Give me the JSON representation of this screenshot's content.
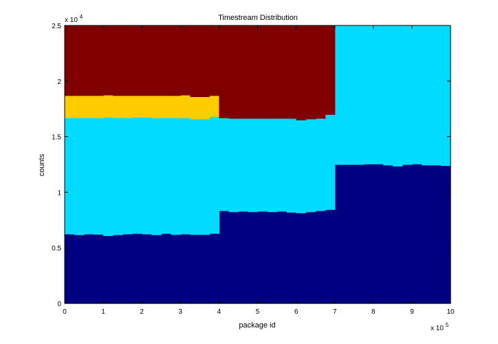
{
  "chart_data": {
    "type": "area",
    "title": "Timestream Distribution",
    "xlabel": "package id",
    "ylabel": "counts",
    "xlim": [
      0,
      1000000
    ],
    "ylim": [
      0,
      25000
    ],
    "x_multiplier": "x 10",
    "x_multiplier_exp": "5",
    "y_multiplier": "x 10",
    "y_multiplier_exp": "4",
    "x_ticks": [
      0,
      100000,
      200000,
      300000,
      400000,
      500000,
      600000,
      700000,
      800000,
      900000,
      1000000
    ],
    "x_tick_labels": [
      "0",
      "1",
      "2",
      "3",
      "4",
      "5",
      "6",
      "7",
      "8",
      "9",
      "10"
    ],
    "y_ticks": [
      0,
      5000,
      10000,
      15000,
      20000,
      25000
    ],
    "y_tick_labels": [
      "0",
      "0.5",
      "1",
      "1.5",
      "2",
      "2.5"
    ],
    "grid": false,
    "legend": "none",
    "stacked": true,
    "bin_edges": [
      0,
      25000,
      50000,
      75000,
      100000,
      125000,
      150000,
      175000,
      200000,
      225000,
      250000,
      275000,
      300000,
      325000,
      350000,
      375000,
      400000,
      425000,
      450000,
      475000,
      500000,
      525000,
      550000,
      575000,
      600000,
      625000,
      650000,
      675000,
      700000,
      725000,
      750000,
      775000,
      800000,
      825000,
      850000,
      875000,
      900000,
      925000,
      950000,
      975000,
      1000000
    ],
    "series": [
      {
        "color": "#000080",
        "values": [
          6250,
          6180,
          6250,
          6220,
          6100,
          6180,
          6250,
          6300,
          6250,
          6180,
          6300,
          6200,
          6250,
          6200,
          6200,
          6300,
          8350,
          8250,
          8300,
          8250,
          8300,
          8250,
          8300,
          8200,
          8150,
          8250,
          8350,
          8450,
          12500,
          12500,
          12500,
          12550,
          12550,
          12450,
          12350,
          12500,
          12550,
          12450,
          12450,
          12400
        ]
      },
      {
        "color": "#00DCFF",
        "values": [
          10450,
          10520,
          10450,
          10480,
          10650,
          10520,
          10450,
          10450,
          10500,
          10520,
          10400,
          10500,
          10450,
          10400,
          10400,
          10500,
          8350,
          8400,
          8350,
          8400,
          8350,
          8400,
          8350,
          8450,
          8350,
          8350,
          8300,
          8550,
          12500,
          12500,
          12500,
          12450,
          12450,
          12550,
          12650,
          12500,
          12450,
          12550,
          12550,
          12600
        ]
      },
      {
        "color": "#FFCC00",
        "values": [
          2000,
          2000,
          2000,
          2000,
          2000,
          2000,
          2000,
          1950,
          1950,
          2000,
          2000,
          2000,
          2050,
          2000,
          2000,
          1900,
          0,
          0,
          0,
          0,
          0,
          0,
          0,
          0,
          0,
          0,
          0,
          0,
          0,
          0,
          0,
          0,
          0,
          0,
          0,
          0,
          0,
          0,
          0,
          0
        ]
      },
      {
        "color": "#800000",
        "values": [
          6300,
          6300,
          6300,
          6300,
          6250,
          6300,
          6300,
          6300,
          6300,
          6300,
          6300,
          6300,
          6250,
          6400,
          6400,
          6300,
          8300,
          8350,
          8350,
          8350,
          8350,
          8350,
          8350,
          8350,
          8500,
          8400,
          8350,
          8000,
          0,
          0,
          0,
          0,
          0,
          0,
          0,
          0,
          0,
          0,
          0,
          0
        ]
      }
    ]
  }
}
